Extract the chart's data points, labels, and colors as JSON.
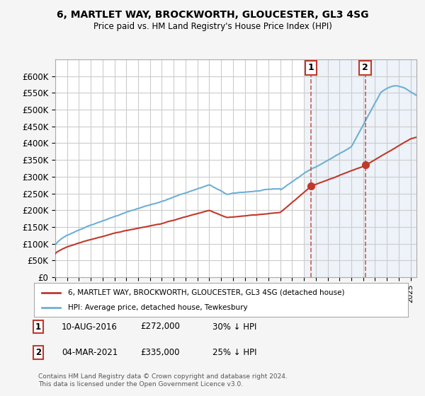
{
  "title": "6, MARTLET WAY, BROCKWORTH, GLOUCESTER, GL3 4SG",
  "subtitle": "Price paid vs. HM Land Registry's House Price Index (HPI)",
  "ylabel_ticks": [
    "£0",
    "£50K",
    "£100K",
    "£150K",
    "£200K",
    "£250K",
    "£300K",
    "£350K",
    "£400K",
    "£450K",
    "£500K",
    "£550K",
    "£600K"
  ],
  "ytick_values": [
    0,
    50000,
    100000,
    150000,
    200000,
    250000,
    300000,
    350000,
    400000,
    450000,
    500000,
    550000,
    600000
  ],
  "xmin": 1995.0,
  "xmax": 2025.5,
  "ymin": 0,
  "ymax": 650000,
  "hpi_color": "#6eb0d4",
  "price_color": "#c0392b",
  "marker1_year": 2016.6,
  "marker1_price": 272000,
  "marker1_label": "1",
  "marker1_date": "10-AUG-2016",
  "marker1_pct": "30% ↓ HPI",
  "marker2_year": 2021.17,
  "marker2_price": 335000,
  "marker2_label": "2",
  "marker2_date": "04-MAR-2021",
  "marker2_pct": "25% ↓ HPI",
  "legend_line1": "6, MARTLET WAY, BROCKWORTH, GLOUCESTER, GL3 4SG (detached house)",
  "legend_line2": "HPI: Average price, detached house, Tewkesbury",
  "footer": "Contains HM Land Registry data © Crown copyright and database right 2024.\nThis data is licensed under the Open Government Licence v3.0.",
  "plot_bg": "#ffffff",
  "grid_color": "#cccccc",
  "shaded_region_start": 2016.0,
  "shaded_region_end": 2025.5
}
